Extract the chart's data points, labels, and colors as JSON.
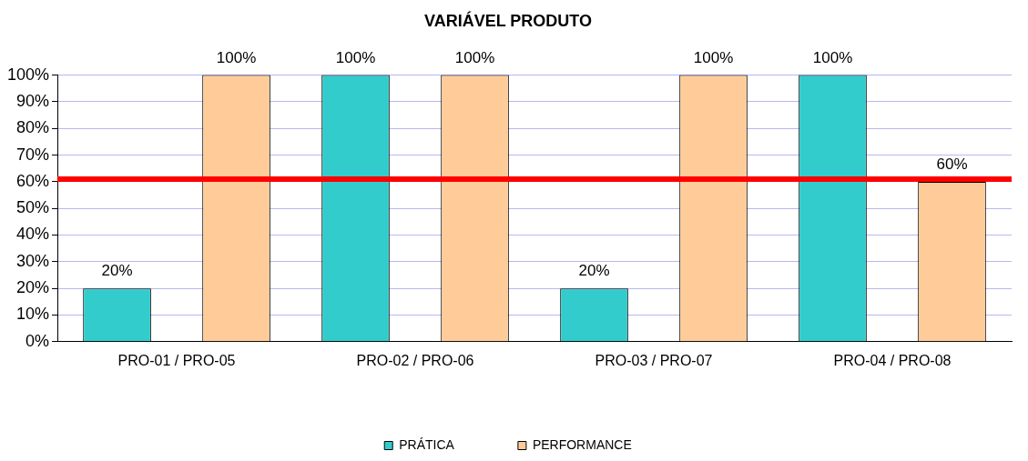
{
  "chart_data": {
    "type": "bar",
    "title": "VARIÁVEL PRODUTO",
    "categories": [
      "PRO-01 / PRO-05",
      "PRO-02 / PRO-06",
      "PRO-03 / PRO-07",
      "PRO-04 / PRO-08"
    ],
    "series": [
      {
        "name": "PRÁTICA",
        "color": "#33cccc",
        "values": [
          20,
          100,
          20,
          100
        ]
      },
      {
        "name": "PERFORMANCE",
        "color": "#ffcc99",
        "values": [
          100,
          100,
          100,
          60
        ]
      }
    ],
    "ylim": [
      0,
      100
    ],
    "yticks": [
      {
        "value": 0,
        "label": "0%"
      },
      {
        "value": 10,
        "label": "10%"
      },
      {
        "value": 20,
        "label": "20%"
      },
      {
        "value": 30,
        "label": "30%"
      },
      {
        "value": 40,
        "label": "40%"
      },
      {
        "value": 50,
        "label": "50%"
      },
      {
        "value": 60,
        "label": "60%"
      },
      {
        "value": 70,
        "label": "70%"
      },
      {
        "value": 80,
        "label": "80%"
      },
      {
        "value": 90,
        "label": "90%"
      },
      {
        "value": 100,
        "label": "100%"
      }
    ],
    "value_labels": [
      [
        "20%",
        "100%",
        "20%",
        "100%"
      ],
      [
        "100%",
        "100%",
        "100%",
        "60%"
      ]
    ],
    "ref_lines": [
      {
        "axis": "y",
        "value": 61,
        "color": "#ff0000"
      }
    ],
    "grid": "y",
    "legend": "bottom"
  }
}
